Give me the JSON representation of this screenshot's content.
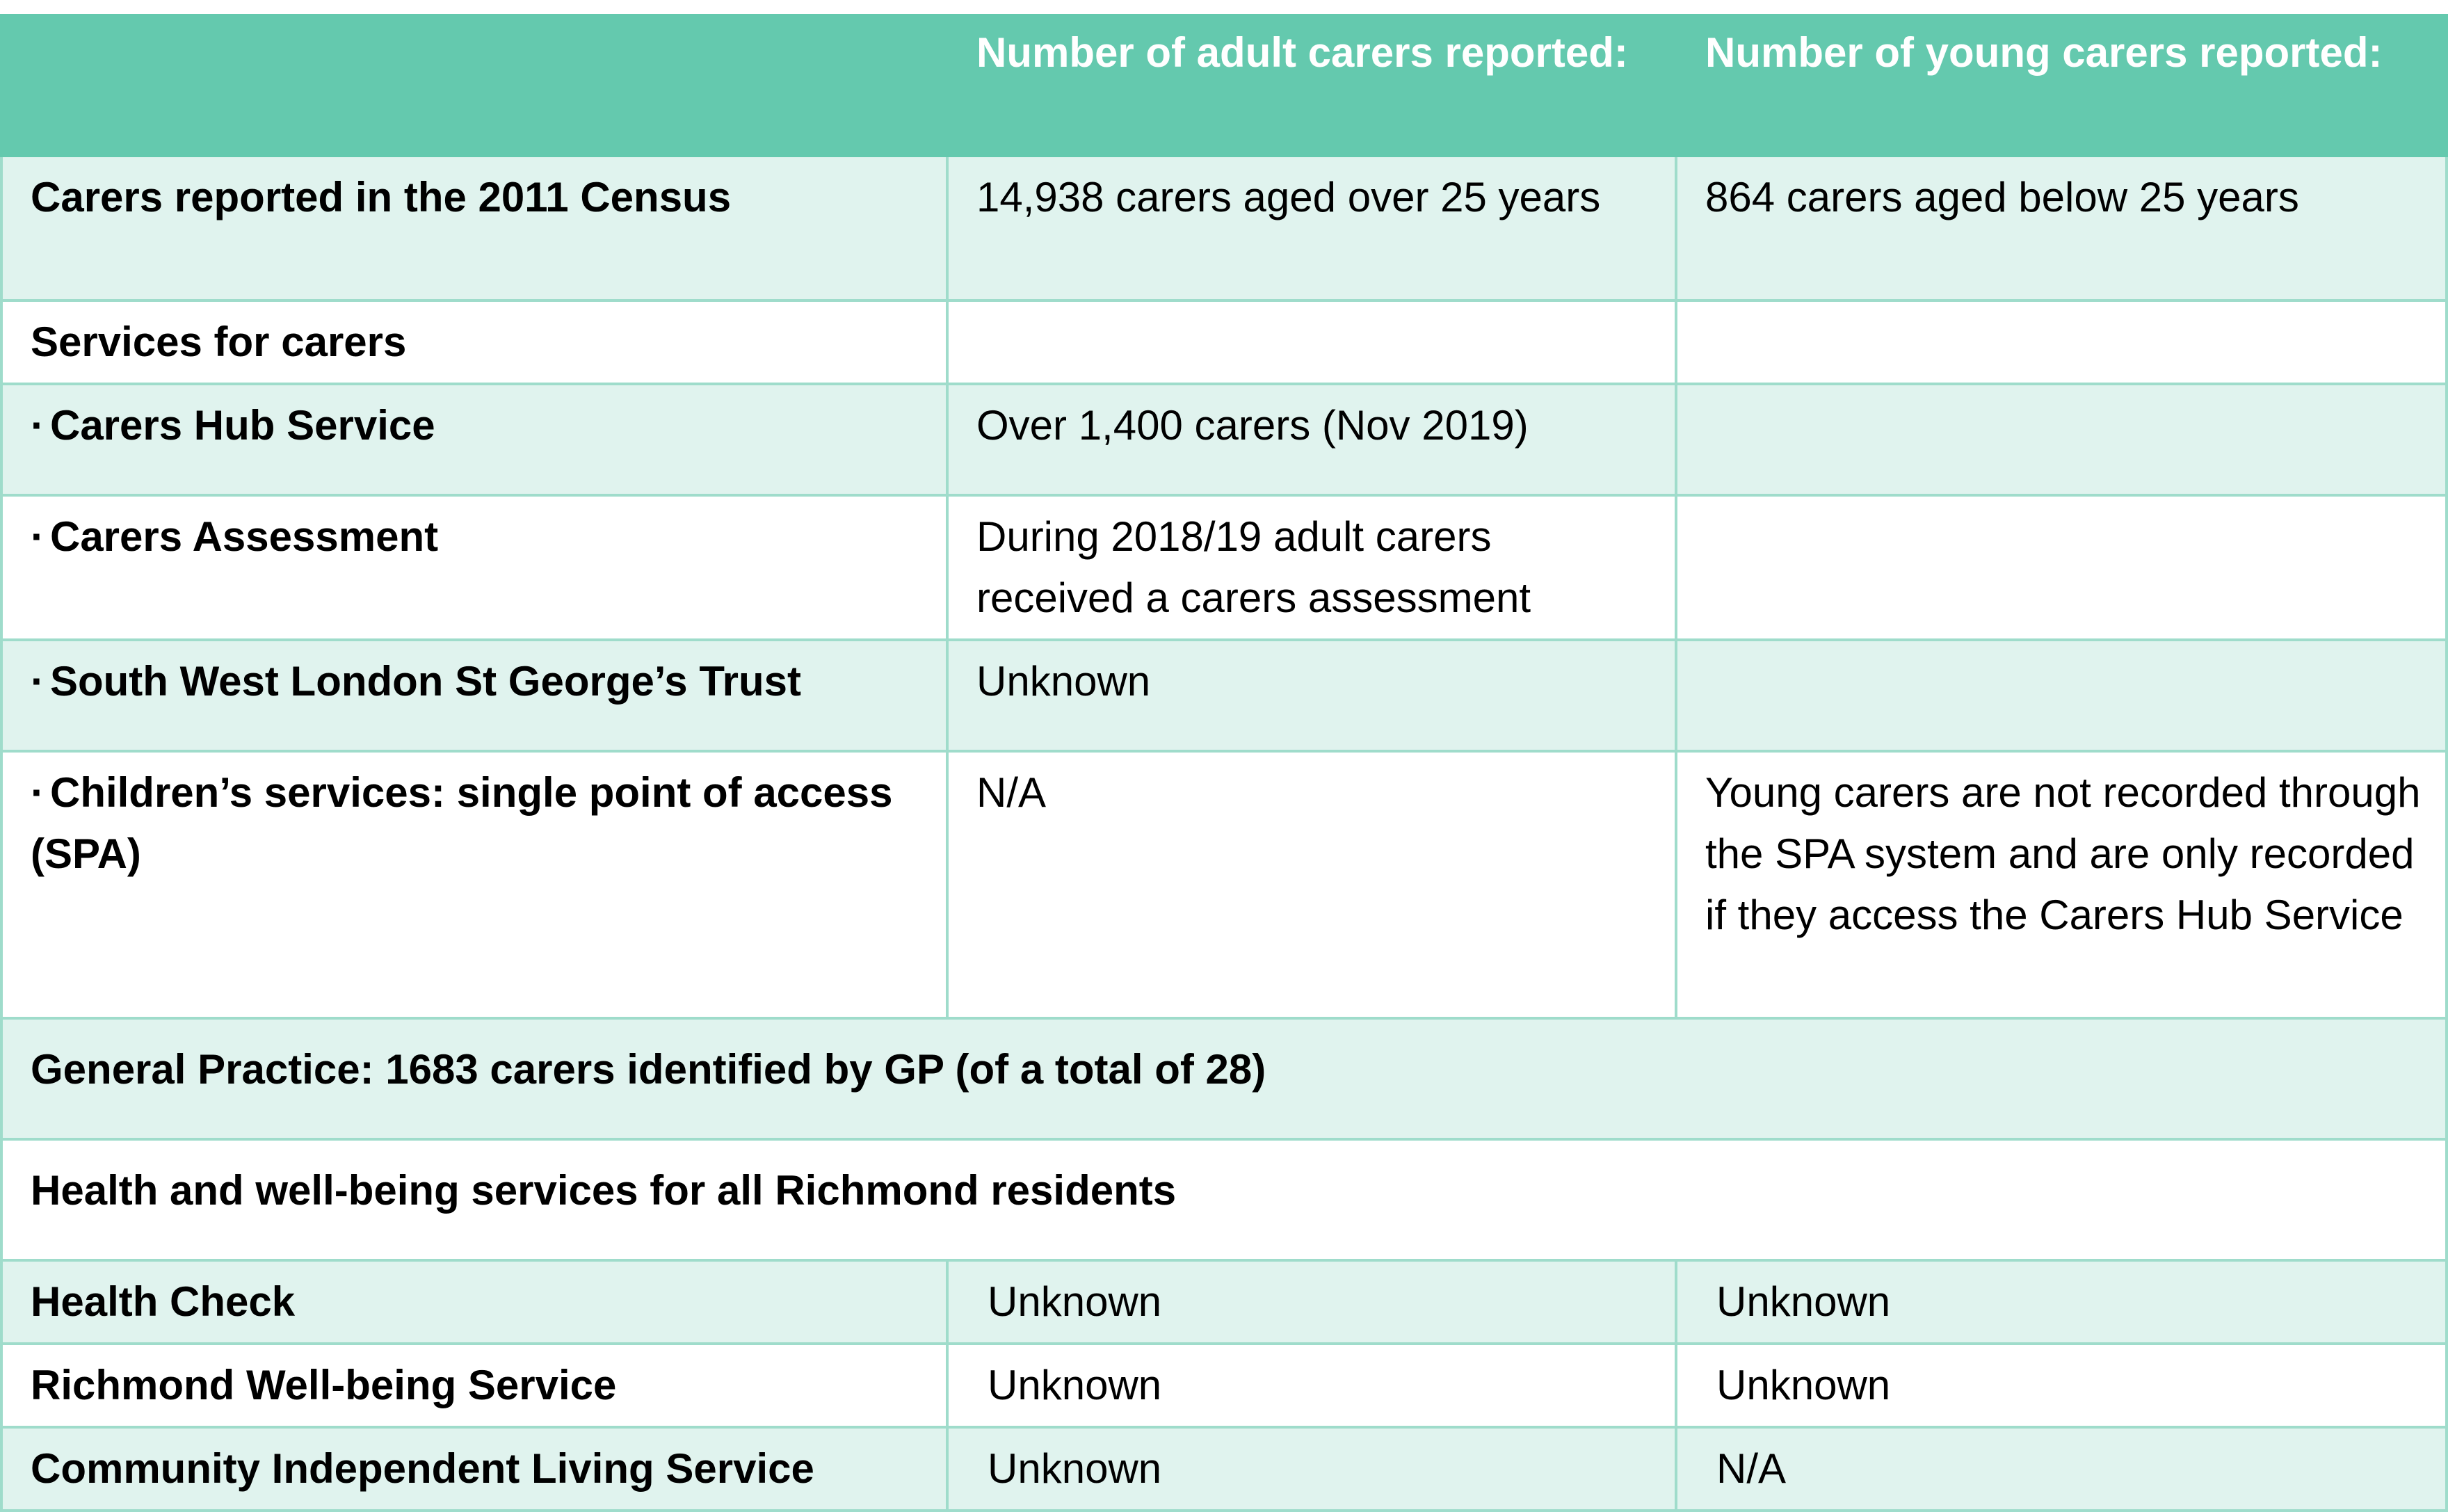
{
  "header": {
    "col1": "",
    "col2": "Number of adult carers reported:",
    "col3": "Number of young carers reported:"
  },
  "rows": {
    "census": {
      "label": "Carers reported in the 2011 Census",
      "adult": "14,938 carers aged over 25 years",
      "young": "864 carers aged below 25 years"
    },
    "services": {
      "label": "Services for carers",
      "adult": "",
      "young": ""
    },
    "hub": {
      "bullet": "·",
      "label": "Carers Hub Service",
      "adult": "Over 1,400 carers (Nov 2019)",
      "young": ""
    },
    "assessment": {
      "bullet": "·",
      "label": "Carers Assessment",
      "adult": "During 2018/19 adult carers received a carers assessment",
      "young": ""
    },
    "trust": {
      "bullet": "·",
      "label": "South West London St George’s Trust",
      "adult": "Unknown",
      "young": ""
    },
    "spa": {
      "bullet": "·",
      "label": "Children’s services: single point of access (SPA)",
      "adult": "N/A",
      "young": "Young carers are not recorded through the SPA system and are only recorded if they access the Carers Hub Service"
    },
    "gp": {
      "label": "General Practice: 1683 carers identified by GP (of a total of 28)"
    },
    "health": {
      "label": "Health and well-being services for all Richmond residents"
    },
    "health_check": {
      "label": "Health Check",
      "adult": "Unknown",
      "young": "Unknown"
    },
    "wellbeing": {
      "label": "Richmond Well-being Service",
      "adult": "Unknown",
      "young": "Unknown"
    },
    "cils": {
      "label": "Community Independent Living Service",
      "adult": "Unknown",
      "young": "N/A"
    }
  },
  "colors": {
    "header_bg": "#64c9ae",
    "header_text": "#ffffff",
    "shade_row": "#e0f3ee",
    "border": "#9fdccb"
  }
}
